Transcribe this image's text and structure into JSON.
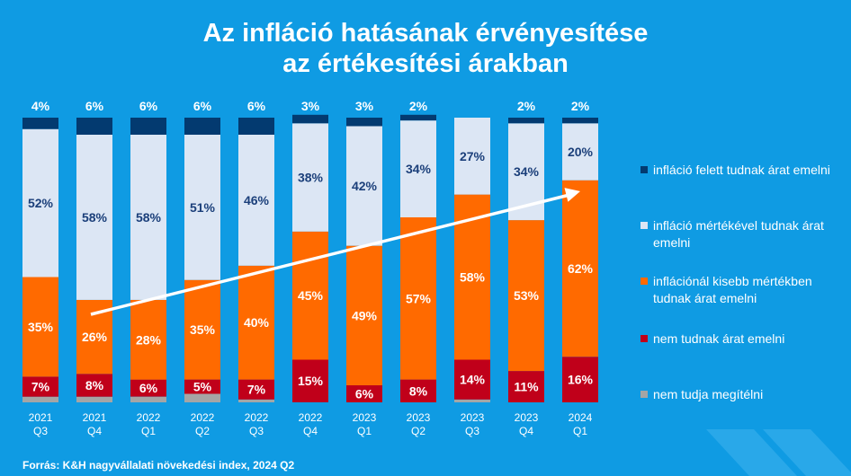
{
  "title": {
    "line1": "Az infláció hatásának érvényesítése",
    "line2": "az értékesítési árakban"
  },
  "source": "Forrás: K&H nagyvállalati növekedési index, 2024 Q2",
  "colors": {
    "background": "#0f9be3",
    "felett": "#033a70",
    "mertekevel": "#dce6f4",
    "kisebb": "#ff6a00",
    "nem": "#c0001a",
    "nem_tudja": "#a5a5a5"
  },
  "chart_data": {
    "type": "bar",
    "stacked": true,
    "normalized_to": 100,
    "categories": [
      [
        "2021",
        "Q3"
      ],
      [
        "2021",
        "Q4"
      ],
      [
        "2022",
        "Q1"
      ],
      [
        "2022",
        "Q2"
      ],
      [
        "2022",
        "Q3"
      ],
      [
        "2022",
        "Q4"
      ],
      [
        "2023",
        "Q1"
      ],
      [
        "2023",
        "Q2"
      ],
      [
        "2023",
        "Q3"
      ],
      [
        "2023",
        "Q4"
      ],
      [
        "2024",
        "Q1"
      ]
    ],
    "series": [
      {
        "key": "nem_tudja",
        "name": "nem tudja megítélni",
        "values": [
          2,
          2,
          2,
          3,
          1,
          0,
          0,
          0,
          1,
          0,
          0
        ],
        "labels": [
          "",
          "",
          "",
          "",
          "",
          "",
          "",
          "",
          "",
          "",
          ""
        ]
      },
      {
        "key": "nem",
        "name": "nem tudnak árat emelni",
        "values": [
          7,
          8,
          6,
          5,
          7,
          15,
          6,
          8,
          14,
          11,
          16
        ],
        "labels": [
          "7%",
          "8%",
          "6%",
          "5%",
          "7%",
          "15%",
          "6%",
          "8%",
          "14%",
          "11%",
          "16%"
        ]
      },
      {
        "key": "kisebb",
        "name": "inflációnál kisebb mértékben tudnak árat emelni",
        "values": [
          35,
          26,
          28,
          35,
          40,
          45,
          49,
          57,
          58,
          53,
          62
        ],
        "labels": [
          "35%",
          "26%",
          "28%",
          "35%",
          "40%",
          "45%",
          "49%",
          "57%",
          "58%",
          "53%",
          "62%"
        ]
      },
      {
        "key": "mertekevel",
        "name": "infláció mértékével tudnak árat emelni",
        "values": [
          52,
          58,
          58,
          51,
          46,
          38,
          42,
          34,
          27,
          34,
          20
        ],
        "labels": [
          "52%",
          "58%",
          "58%",
          "51%",
          "46%",
          "38%",
          "42%",
          "34%",
          "27%",
          "34%",
          "20%"
        ]
      },
      {
        "key": "felett",
        "name": "infláció felett tudnak árat emelni",
        "values": [
          4,
          6,
          6,
          6,
          6,
          3,
          3,
          2,
          0,
          2,
          2
        ],
        "labels": [
          "4%",
          "6%",
          "6%",
          "6%",
          "6%",
          "3%",
          "3%",
          "2%",
          "",
          "2%",
          "2%"
        ]
      }
    ],
    "legend_order": [
      "felett",
      "mertekevel",
      "kisebb",
      "nem",
      "nem_tudja"
    ],
    "legend_position": "right",
    "trend_arrow": {
      "from_category": 1,
      "to_category": 10,
      "direction": "up"
    }
  }
}
